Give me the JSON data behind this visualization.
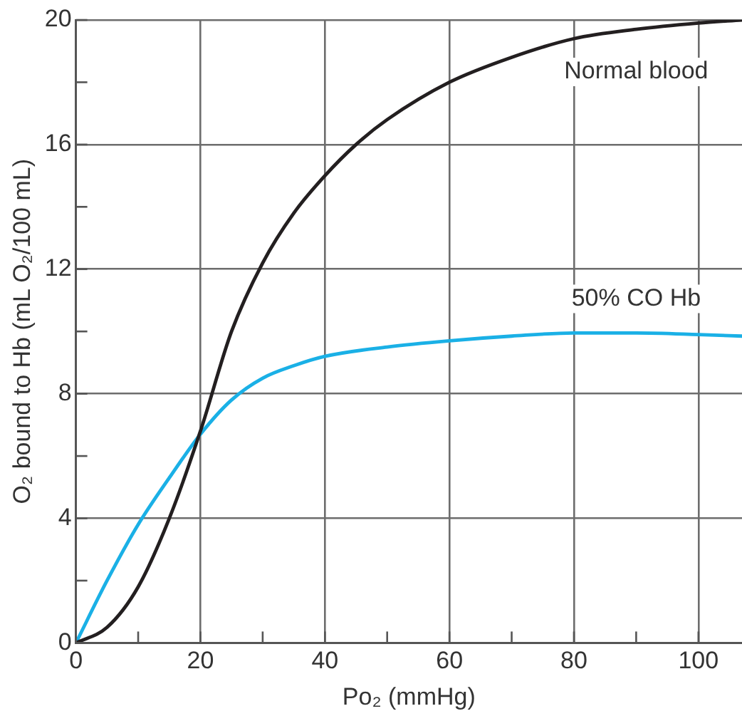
{
  "chart_data": {
    "type": "line",
    "xlabel": "Po₂ (mmHg)",
    "ylabel": "O₂ bound to Hb (mL O₂/100 mL)",
    "xlim": [
      0,
      107
    ],
    "ylim": [
      0,
      20
    ],
    "xticks": [
      0,
      {
        "value": 10,
        "label": null
      },
      20,
      {
        "value": 30,
        "label": null
      },
      40,
      {
        "value": 50,
        "label": null
      },
      60,
      {
        "value": 70,
        "label": null
      },
      80,
      {
        "value": 90,
        "label": null
      },
      100
    ],
    "yticks": [
      0,
      {
        "value": 2,
        "label": null
      },
      4,
      {
        "value": 6,
        "label": null
      },
      8,
      {
        "value": 10,
        "label": null
      },
      12,
      {
        "value": 14,
        "label": null
      },
      16,
      {
        "value": 18,
        "label": null
      },
      20
    ],
    "grid": true,
    "marker": "none",
    "line_style": "solid",
    "series": [
      {
        "name": "Normal blood",
        "color": "#231f20",
        "x": [
          0,
          5,
          10,
          15,
          20,
          25,
          30,
          35,
          40,
          45,
          50,
          60,
          70,
          80,
          90,
          100,
          107
        ],
        "values": [
          0,
          0.5,
          1.8,
          4,
          6.8,
          10,
          12.2,
          13.8,
          15,
          16,
          16.8,
          18,
          18.8,
          19.4,
          19.7,
          19.9,
          20
        ]
      },
      {
        "name": "50% CO Hb",
        "color": "#1ab0e6",
        "x": [
          0,
          5,
          10,
          15,
          20,
          25,
          30,
          35,
          40,
          50,
          60,
          70,
          80,
          90,
          100,
          107
        ],
        "values": [
          0,
          2,
          3.8,
          5.3,
          6.7,
          7.8,
          8.5,
          8.9,
          9.2,
          9.5,
          9.7,
          9.85,
          9.95,
          9.95,
          9.9,
          9.85
        ]
      }
    ]
  }
}
